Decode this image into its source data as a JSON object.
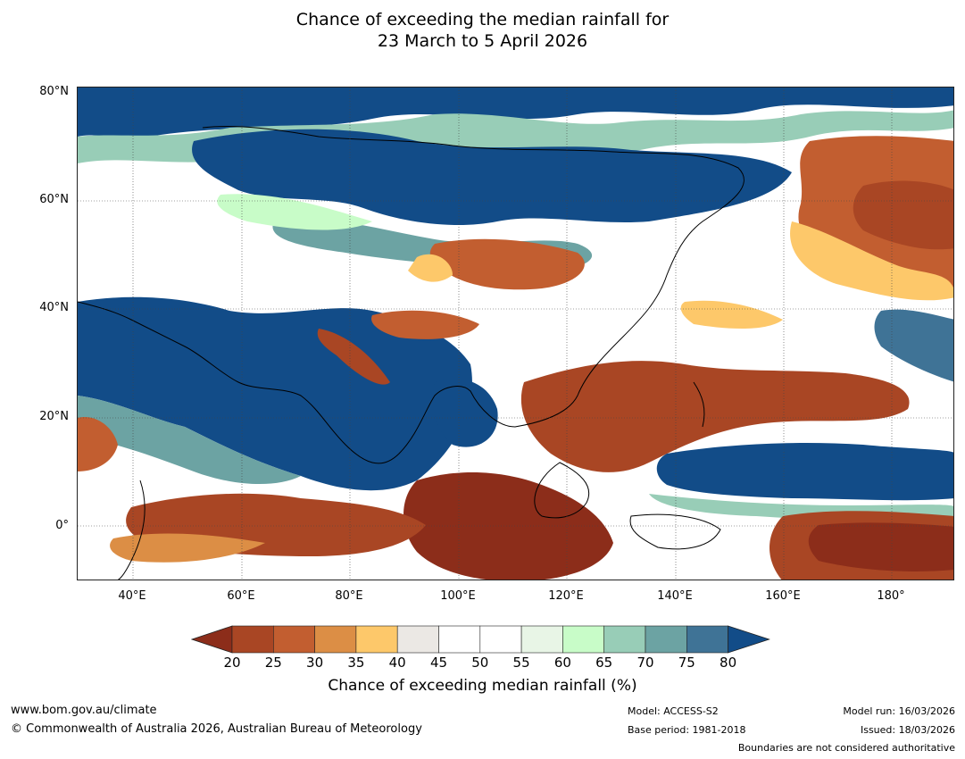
{
  "title": {
    "line1": "Chance of exceeding the median rainfall for",
    "line2": "23 March to 5 April 2026"
  },
  "map": {
    "lat_labels": [
      "80°N",
      "60°N",
      "40°N",
      "20°N",
      "0°"
    ],
    "lon_labels": [
      "40°E",
      "60°E",
      "80°E",
      "100°E",
      "120°E",
      "140°E",
      "160°E",
      "180°"
    ],
    "ocean_color": "#ffffff",
    "coastline_color": "#000000",
    "border_color": "#888888"
  },
  "colorbar": {
    "title": "Chance of exceeding median rainfall (%)",
    "ticks": [
      "20",
      "25",
      "30",
      "35",
      "40",
      "45",
      "50",
      "55",
      "60",
      "65",
      "70",
      "75",
      "80"
    ],
    "colors": [
      "#8c2d1a",
      "#a94624",
      "#c25e30",
      "#dc8e45",
      "#fdc86a",
      "#ebe8e4",
      "#ffffff",
      "#ffffff",
      "#e8f5e6",
      "#c8fcc8",
      "#98cdb7",
      "#6ca3a3",
      "#3f7396",
      "#124c88"
    ]
  },
  "footer": {
    "website": "www.bom.gov.au/climate",
    "copyright": "© Commonwealth of Australia 2026, Australian Bureau of Meteorology",
    "model": "Model: ACCESS-S2",
    "base_period": "Base period: 1981-2018",
    "model_run": "Model run: 16/03/2026",
    "issued": "Issued: 18/03/2026",
    "disclaimer": "Boundaries are not considered authoritative"
  }
}
